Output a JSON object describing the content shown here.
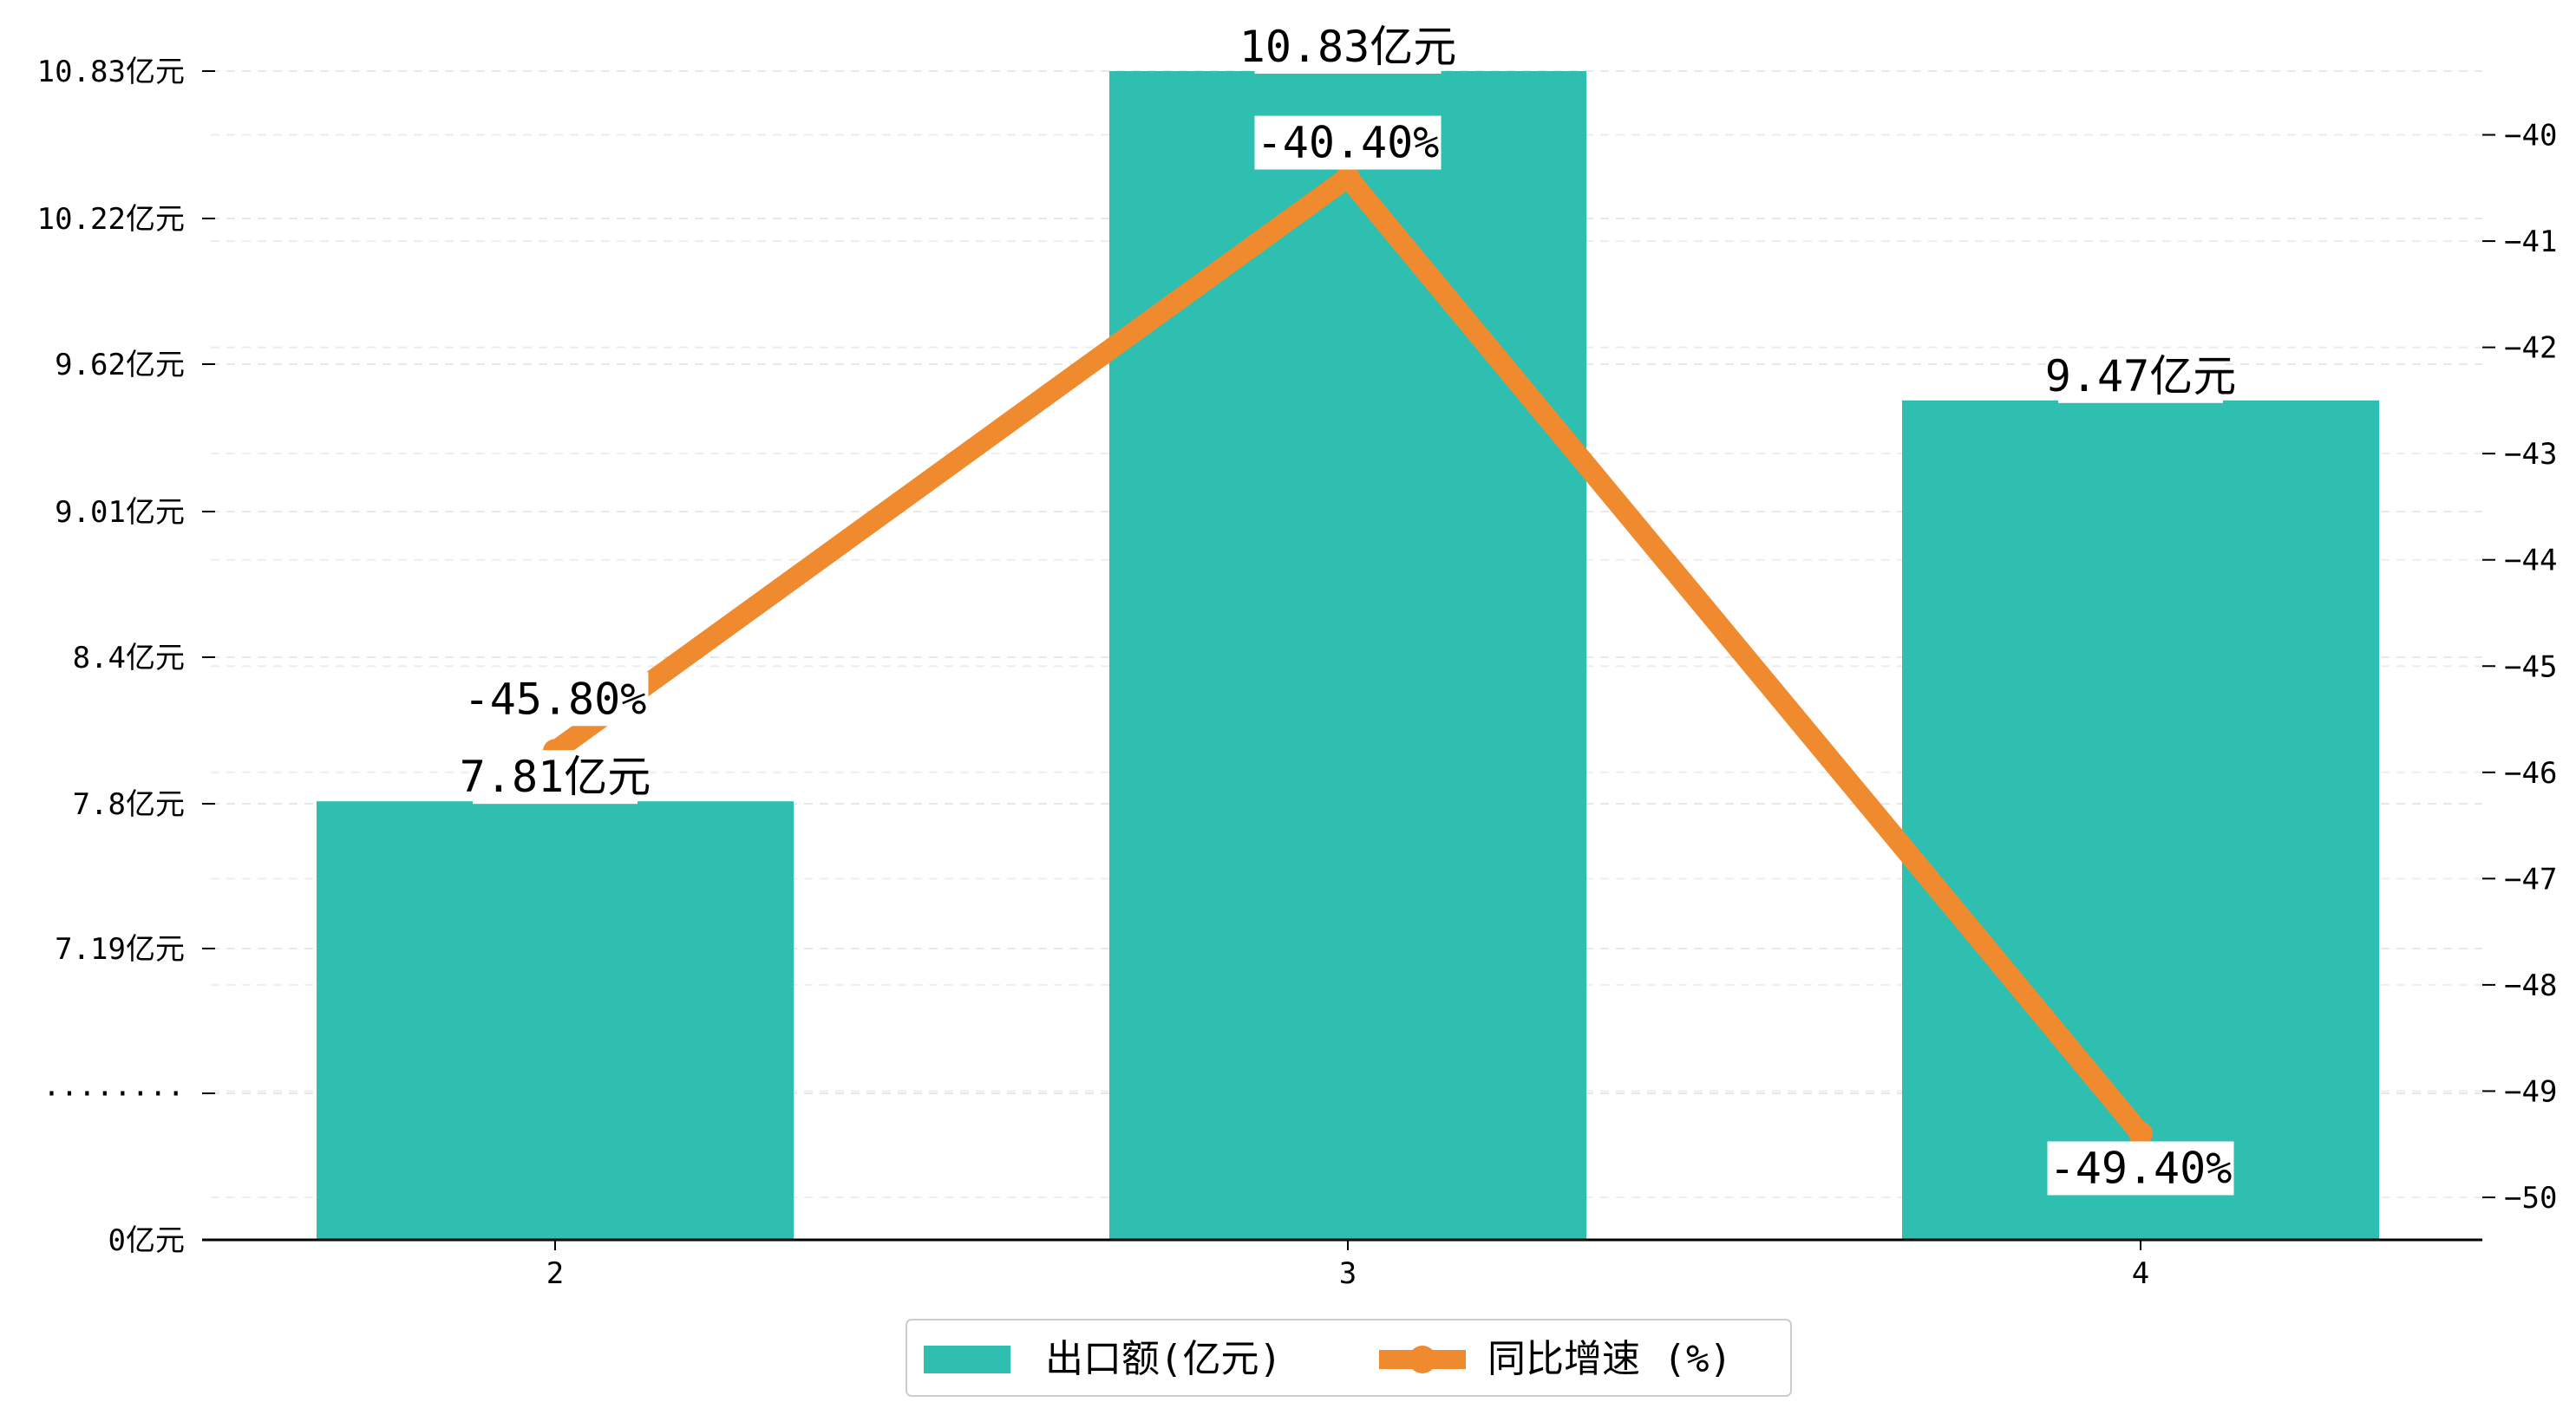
{
  "chart_data": {
    "type": "bar",
    "categories": [
      "2",
      "3",
      "4"
    ],
    "series": [
      {
        "name": "出口额(亿元)",
        "type": "bar",
        "axis": "left",
        "values": [
          7.81,
          10.83,
          9.47
        ],
        "labels": [
          "7.81亿元",
          "10.83亿元",
          "9.47亿元"
        ],
        "color": "#2ebfb0"
      },
      {
        "name": "同比增速 (%)",
        "type": "line",
        "axis": "right",
        "values": [
          -45.8,
          -40.4,
          -49.4
        ],
        "labels": [
          "-45.80%",
          "-40.40%",
          "-49.40%"
        ],
        "color": "#f08a2e"
      }
    ],
    "left_axis": {
      "ticks": [
        {
          "label": "0亿元"
        },
        {
          "label": "········"
        },
        {
          "label": "7.19亿元"
        },
        {
          "label": "7.8亿元"
        },
        {
          "label": "8.4亿元"
        },
        {
          "label": "9.01亿元"
        },
        {
          "label": "9.62亿元"
        },
        {
          "label": "10.22亿元"
        },
        {
          "label": "10.83亿元"
        }
      ],
      "broken": true
    },
    "right_axis": {
      "range": [
        -50.4,
        -39.4
      ],
      "ticks": [
        -40,
        -41,
        -42,
        -43,
        -44,
        -45,
        -46,
        -47,
        -48,
        -49,
        -50
      ]
    },
    "grid": true,
    "legend_position": "bottom-center"
  }
}
